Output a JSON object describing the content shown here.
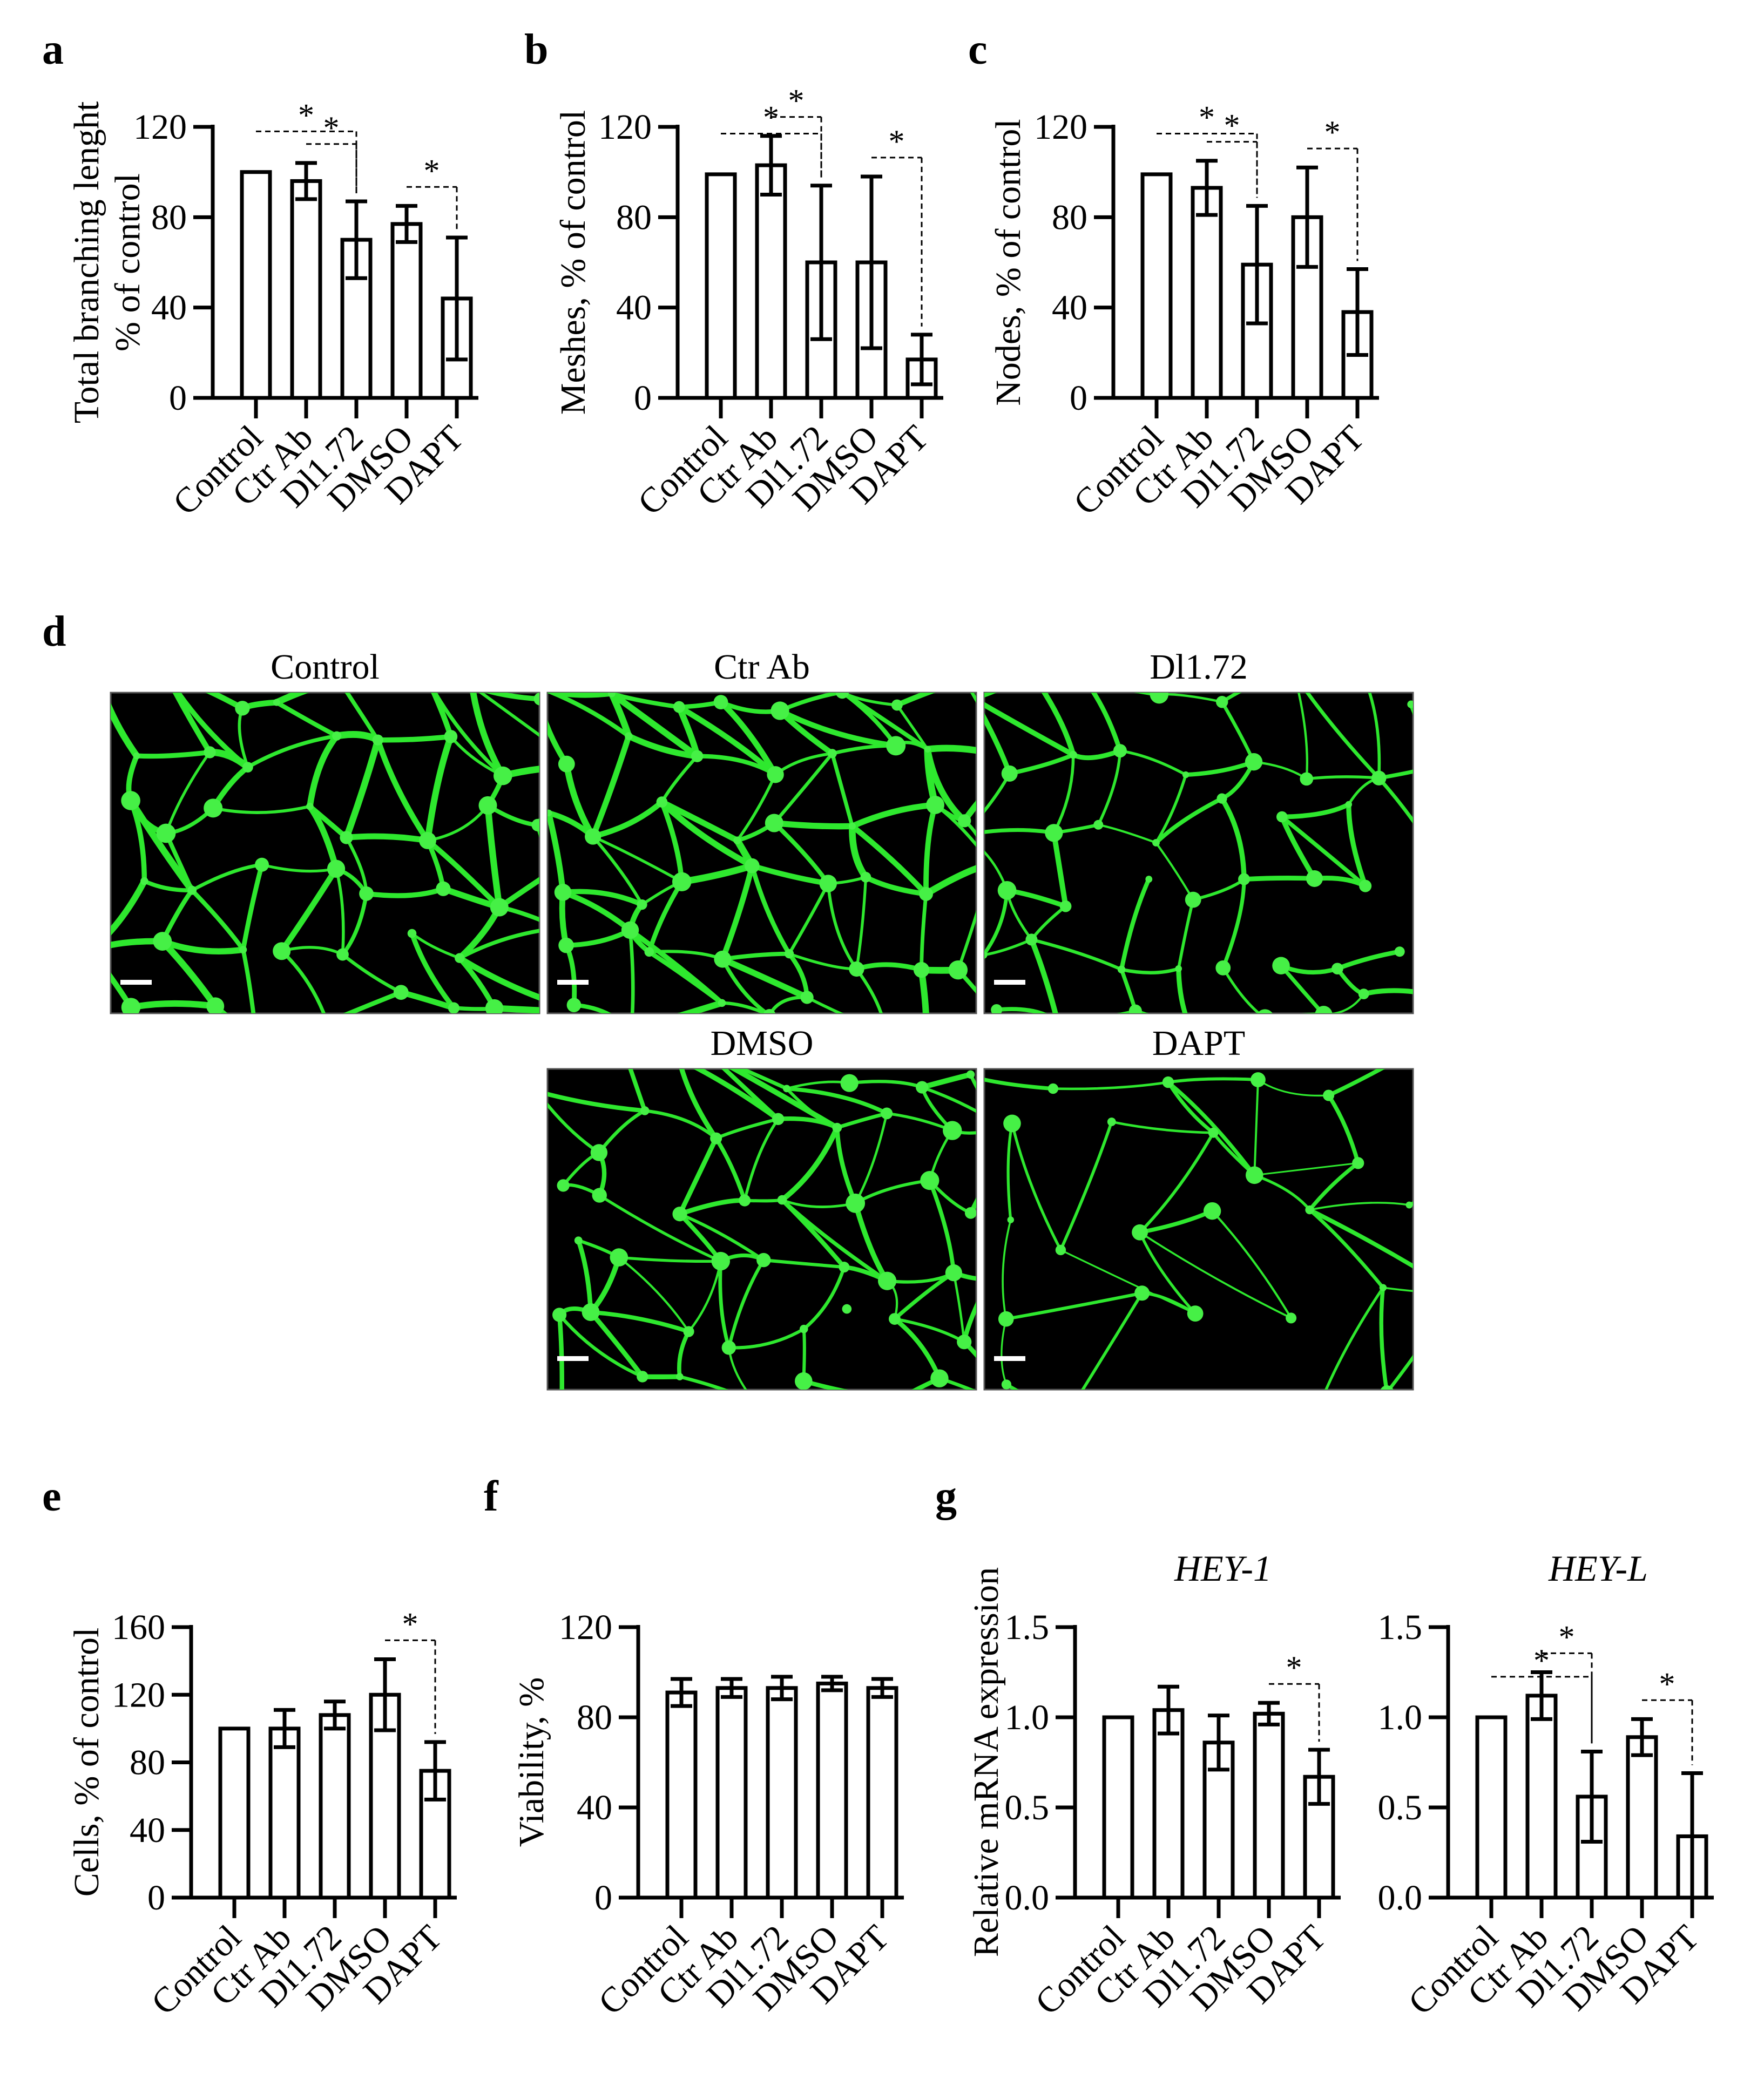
{
  "categories": [
    "Control",
    "Ctr Ab",
    "Dl1.72",
    "DMSO",
    "DAPT"
  ],
  "chart_data": [
    {
      "id": "a",
      "letter": "a",
      "type": "bar",
      "ylabel": [
        "Total branching lenght",
        "% of control"
      ],
      "ylim": [
        0,
        120
      ],
      "yticks": [
        "0",
        "40",
        "80",
        "120"
      ],
      "ytick_values": [
        0,
        40,
        80,
        120
      ],
      "categories": [
        "Control",
        "Ctr Ab",
        "Dl1.72",
        "DMSO",
        "DAPT"
      ],
      "values": [
        100,
        96,
        70,
        77,
        44
      ],
      "errors": [
        0,
        8,
        17,
        8,
        27
      ],
      "significance": [
        {
          "from": 0,
          "to": 2,
          "label": "*"
        },
        {
          "from": 1,
          "to": 2,
          "label": "*"
        },
        {
          "from": 3,
          "to": 4,
          "label": "*"
        }
      ]
    },
    {
      "id": "b",
      "letter": "b",
      "type": "bar",
      "ylabel": [
        "Meshes, % of control"
      ],
      "ylim": [
        0,
        120
      ],
      "yticks": [
        "0",
        "40",
        "80",
        "120"
      ],
      "ytick_values": [
        0,
        40,
        80,
        120
      ],
      "categories": [
        "Control",
        "Ctr Ab",
        "Dl1.72",
        "DMSO",
        "DAPT"
      ],
      "values": [
        99,
        103,
        60,
        60,
        17
      ],
      "errors": [
        0,
        13,
        34,
        38,
        11
      ],
      "significance": [
        {
          "from": 0,
          "to": 2,
          "label": "*"
        },
        {
          "from": 1,
          "to": 2,
          "label": "*"
        },
        {
          "from": 3,
          "to": 4,
          "label": "*"
        }
      ]
    },
    {
      "id": "c",
      "letter": "c",
      "type": "bar",
      "ylabel": [
        "Nodes, % of control"
      ],
      "ylim": [
        0,
        120
      ],
      "yticks": [
        "0",
        "40",
        "80",
        "120"
      ],
      "ytick_values": [
        0,
        40,
        80,
        120
      ],
      "categories": [
        "Control",
        "Ctr Ab",
        "Dl1.72",
        "DMSO",
        "DAPT"
      ],
      "values": [
        99,
        93,
        59,
        80,
        38
      ],
      "errors": [
        0,
        12,
        26,
        22,
        19
      ],
      "significance": [
        {
          "from": 0,
          "to": 2,
          "label": "*"
        },
        {
          "from": 1,
          "to": 2,
          "label": "*"
        },
        {
          "from": 3,
          "to": 4,
          "label": "*"
        }
      ]
    },
    {
      "id": "e",
      "letter": "e",
      "type": "bar",
      "ylabel": [
        "Cells, % of control"
      ],
      "ylim": [
        0,
        160
      ],
      "yticks": [
        "0",
        "40",
        "80",
        "120",
        "160"
      ],
      "ytick_values": [
        0,
        40,
        80,
        120,
        160
      ],
      "categories": [
        "Control",
        "Ctr Ab",
        "Dl1.72",
        "DMSO",
        "DAPT"
      ],
      "values": [
        100,
        100,
        108,
        120,
        75
      ],
      "errors": [
        0,
        11,
        8,
        21,
        17
      ],
      "significance": [
        {
          "from": 3,
          "to": 4,
          "label": "*"
        }
      ]
    },
    {
      "id": "f",
      "letter": "f",
      "type": "bar",
      "ylabel": [
        "Viability, %"
      ],
      "ylim": [
        0,
        120
      ],
      "yticks": [
        "0",
        "40",
        "80",
        "120"
      ],
      "ytick_values": [
        0,
        40,
        80,
        120
      ],
      "categories": [
        "Control",
        "Ctr Ab",
        "Dl1.72",
        "DMSO",
        "DAPT"
      ],
      "values": [
        91,
        93,
        93,
        95,
        93
      ],
      "errors": [
        6,
        4,
        5,
        3,
        4
      ],
      "significance": []
    },
    {
      "id": "g1",
      "letter": "g",
      "type": "bar",
      "title": "HEY-1",
      "ylabel": [
        "Relative mRNA expression"
      ],
      "ylim": [
        0,
        1.5
      ],
      "yticks": [
        "0.0",
        "0.5",
        "1.0",
        "1.5"
      ],
      "ytick_values": [
        0,
        0.5,
        1.0,
        1.5
      ],
      "categories": [
        "Control",
        "Ctr Ab",
        "Dl1.72",
        "DMSO",
        "DAPT"
      ],
      "values": [
        1.0,
        1.04,
        0.86,
        1.02,
        0.67
      ],
      "errors": [
        0,
        0.13,
        0.15,
        0.06,
        0.15
      ],
      "significance": [
        {
          "from": 3,
          "to": 4,
          "label": "*"
        }
      ]
    },
    {
      "id": "g2",
      "letter": "",
      "type": "bar",
      "title": "HEY-L",
      "ylabel": [],
      "ylim": [
        0,
        1.5
      ],
      "yticks": [
        "0.0",
        "0.5",
        "1.0",
        "1.5"
      ],
      "ytick_values": [
        0,
        0.5,
        1.0,
        1.5
      ],
      "categories": [
        "Control",
        "Ctr Ab",
        "Dl1.72",
        "DMSO",
        "DAPT"
      ],
      "values": [
        1.0,
        1.12,
        0.56,
        0.89,
        0.34
      ],
      "errors": [
        0,
        0.13,
        0.25,
        0.1,
        0.35
      ],
      "significance": [
        {
          "from": 0,
          "to": 2,
          "label": "*"
        },
        {
          "from": 1,
          "to": 2,
          "label": "*"
        },
        {
          "from": 3,
          "to": 4,
          "label": "*"
        }
      ]
    }
  ],
  "micrographs": {
    "letter": "d",
    "panels": [
      {
        "title": "Control",
        "seed": 11,
        "density": "high"
      },
      {
        "title": "Ctr Ab",
        "seed": 23,
        "density": "high"
      },
      {
        "title": "Dl1.72",
        "seed": 37,
        "density": "medium"
      },
      {
        "title": "DMSO",
        "seed": 41,
        "density": "medium"
      },
      {
        "title": "DAPT",
        "seed": 59,
        "density": "low"
      }
    ],
    "vessel_color": "#2ee82e",
    "background": "#000000"
  }
}
